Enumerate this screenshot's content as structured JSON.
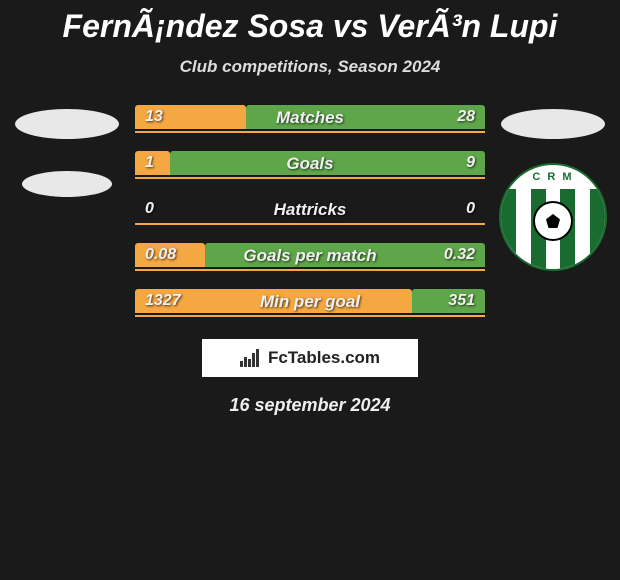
{
  "title": "FernÃ¡ndez Sosa vs VerÃ³n Lupi",
  "subtitle": "Club competitions, Season 2024",
  "date": "16 september 2024",
  "brand": "FcTables.com",
  "colors": {
    "player1_bar": "#f5a742",
    "player2_bar": "#5fa64a",
    "border": "#f5a742",
    "background": "#1a1a1a",
    "badge_green": "#1a6b2f"
  },
  "badge_text": "C R M",
  "stats": [
    {
      "label": "Matches",
      "left_val": "13",
      "right_val": "28",
      "left_pct": 31.7,
      "right_pct": 68.3
    },
    {
      "label": "Goals",
      "left_val": "1",
      "right_val": "9",
      "left_pct": 10,
      "right_pct": 90
    },
    {
      "label": "Hattricks",
      "left_val": "0",
      "right_val": "0",
      "left_pct": 0,
      "right_pct": 0
    },
    {
      "label": "Goals per match",
      "left_val": "0.08",
      "right_val": "0.32",
      "left_pct": 20,
      "right_pct": 80
    },
    {
      "label": "Min per goal",
      "left_val": "1327",
      "right_val": "351",
      "left_pct": 79.1,
      "right_pct": 20.9
    }
  ]
}
